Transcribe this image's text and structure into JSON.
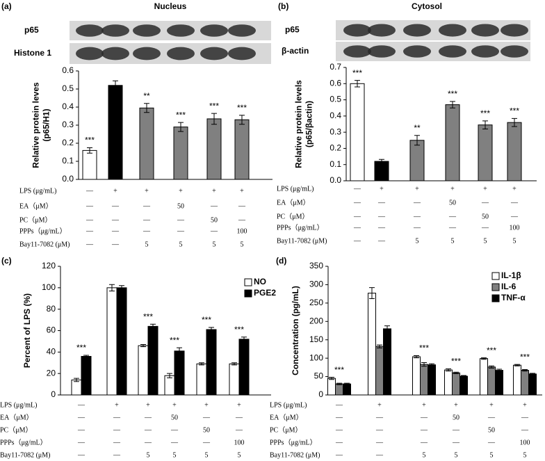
{
  "chart_data": [
    {
      "type": "bar",
      "panel_label": "(a)",
      "title": "Nucleus",
      "blot_labels": [
        "p65",
        "Histone 1"
      ],
      "ylabel": [
        "Relative protein leves",
        "(p65/H1)"
      ],
      "ylim": [
        0,
        0.6
      ],
      "yticks": [
        {
          "value": 0,
          "label": "0.0"
        },
        0.1,
        0.2,
        0.3,
        0.4,
        0.5,
        0.6
      ],
      "series": [
        {
          "colors": [
            "#ffffff",
            "#000000",
            "#808080",
            "#808080",
            "#808080",
            "#808080"
          ],
          "values": [
            0.16,
            0.52,
            0.395,
            0.29,
            0.335,
            0.33
          ],
          "errors": [
            0.015,
            0.025,
            0.025,
            0.025,
            0.03,
            0.025
          ]
        }
      ],
      "annotations": [
        "***",
        null,
        "**",
        "***",
        "***",
        "***"
      ],
      "treatments": [
        {
          "label": "LPS (μg/mL)",
          "cells": [
            "—",
            "+",
            "+",
            "+",
            "+",
            "+"
          ]
        },
        {
          "label": "EA（μM）",
          "cells": [
            "—",
            "—",
            "—",
            "50",
            "—",
            "—"
          ]
        },
        {
          "label": "PC（μM）",
          "cells": [
            "—",
            "—",
            "—",
            "—",
            "50",
            "—"
          ]
        },
        {
          "label": "PPPs（μg/mL）",
          "cells": [
            "—",
            "—",
            "—",
            "—",
            "—",
            "100"
          ]
        },
        {
          "label": "Bay11-7082 (μM)",
          "cells": [
            "—",
            "—",
            "5",
            "5",
            "5",
            "5"
          ]
        }
      ]
    },
    {
      "type": "bar",
      "panel_label": "(b)",
      "title": "Cytosol",
      "blot_labels": [
        "p65",
        "β-actin"
      ],
      "ylabel": [
        "Relative protein levels",
        "(p65/βactin)"
      ],
      "ylim": [
        0,
        0.7
      ],
      "yticks": [
        {
          "value": 0,
          "label": "0.0"
        },
        0.1,
        0.2,
        0.3,
        0.4,
        0.5,
        0.6,
        0.7
      ],
      "series": [
        {
          "colors": [
            "#ffffff",
            "#000000",
            "#808080",
            "#808080",
            "#808080",
            "#808080"
          ],
          "values": [
            0.6,
            0.12,
            0.25,
            0.47,
            0.345,
            0.36
          ],
          "errors": [
            0.02,
            0.012,
            0.03,
            0.02,
            0.025,
            0.025
          ]
        }
      ],
      "annotations": [
        "***",
        null,
        "**",
        "***",
        "***",
        "***"
      ],
      "treatments": [
        {
          "label": "LPS (μg/mL)",
          "cells": [
            "—",
            "+",
            "+",
            "+",
            "+",
            "+"
          ]
        },
        {
          "label": "EA（μM）",
          "cells": [
            "—",
            "—",
            "—",
            "50",
            "—",
            "—"
          ]
        },
        {
          "label": "PC（μM）",
          "cells": [
            "—",
            "—",
            "—",
            "—",
            "50",
            "—"
          ]
        },
        {
          "label": "PPPs（μg/mL）",
          "cells": [
            "—",
            "—",
            "—",
            "—",
            "—",
            "100"
          ]
        },
        {
          "label": "Bay11-7082 (μM)",
          "cells": [
            "—",
            "—",
            "5",
            "5",
            "5",
            "5"
          ]
        }
      ]
    },
    {
      "type": "bar",
      "panel_label": "(c)",
      "ylabel": [
        "Percent of LPS (%)"
      ],
      "ylim": [
        0,
        120
      ],
      "yticks": [
        0,
        20,
        40,
        60,
        80,
        100,
        120
      ],
      "legend": "upper right",
      "series": [
        {
          "name": "NO",
          "color": "#ffffff",
          "values": [
            14,
            100,
            46,
            18,
            29,
            29
          ],
          "errors": [
            1.5,
            3,
            1,
            2,
            1,
            1
          ]
        },
        {
          "name": "PGE2",
          "color": "#000000",
          "values": [
            36,
            100,
            64,
            41,
            61,
            52
          ],
          "errors": [
            1,
            2,
            2,
            3,
            2,
            2
          ]
        }
      ],
      "annotations": [
        "***",
        null,
        "***",
        "***",
        "***",
        "***"
      ],
      "treatments": [
        {
          "label": "LPS (μg/mL)",
          "cells": [
            "—",
            "+",
            "+",
            "+",
            "+",
            "+"
          ]
        },
        {
          "label": "EA（μM）",
          "cells": [
            "—",
            "—",
            "—",
            "50",
            "—",
            "—"
          ]
        },
        {
          "label": "PC（μM）",
          "cells": [
            "—",
            "—",
            "—",
            "—",
            "50",
            "—"
          ]
        },
        {
          "label": "PPPs（μg/mL）",
          "cells": [
            "—",
            "—",
            "—",
            "—",
            "—",
            "100"
          ]
        },
        {
          "label": "Bay11-7082 (μM)",
          "cells": [
            "—",
            "—",
            "5",
            "5",
            "5",
            "5"
          ]
        }
      ]
    },
    {
      "type": "bar",
      "panel_label": "(d)",
      "ylabel": [
        "Concentration (pg/mL)"
      ],
      "ylim": [
        0,
        350
      ],
      "yticks": [
        0,
        50,
        100,
        150,
        200,
        250,
        300,
        350
      ],
      "legend": "upper right",
      "series": [
        {
          "name": "IL-1β",
          "color": "#ffffff",
          "values": [
            45,
            277,
            104,
            68,
            99,
            81
          ],
          "errors": [
            3,
            15,
            3,
            3,
            2,
            2
          ]
        },
        {
          "name": "IL-6",
          "color": "#808080",
          "values": [
            30,
            132,
            83,
            60,
            76,
            67
          ],
          "errors": [
            2,
            4,
            5,
            2,
            3,
            2
          ]
        },
        {
          "name": "TNF-α",
          "color": "#000000",
          "values": [
            30,
            180,
            82,
            51,
            67,
            57
          ],
          "errors": [
            2,
            8,
            3,
            2,
            3,
            2
          ]
        }
      ],
      "annotations": [
        "***",
        null,
        "***",
        "***",
        "***",
        "***"
      ],
      "treatments": [
        {
          "label": "LPS (μg/mL)",
          "cells": [
            "—",
            "+",
            "+",
            "+",
            "+",
            "+"
          ]
        },
        {
          "label": "EA（μM）",
          "cells": [
            "—",
            "—",
            "—",
            "50",
            "—",
            "—"
          ]
        },
        {
          "label": "PC（μM）",
          "cells": [
            "—",
            "—",
            "—",
            "—",
            "50",
            "—"
          ]
        },
        {
          "label": "PPPs（μg/mL）",
          "cells": [
            "—",
            "—",
            "—",
            "—",
            "—",
            "100"
          ]
        },
        {
          "label": "Bay11-7082 (μM)",
          "cells": [
            "—",
            "—",
            "5",
            "5",
            "5",
            "5"
          ]
        }
      ]
    }
  ]
}
